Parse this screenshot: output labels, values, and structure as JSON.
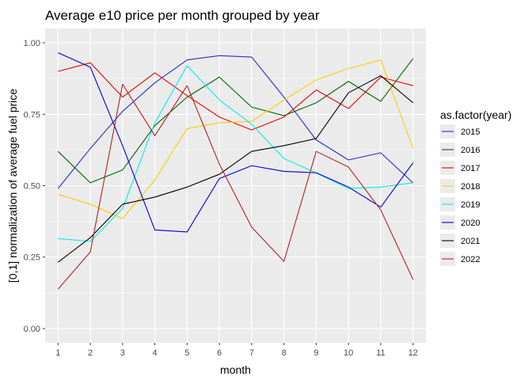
{
  "chart_data": {
    "type": "line",
    "title": "Average e10 price per month grouped by year",
    "xlabel": "month",
    "ylabel": "[0,1] normalization of average fuel price",
    "x": [
      1,
      2,
      3,
      4,
      5,
      6,
      7,
      8,
      9,
      10,
      11,
      12
    ],
    "x_ticks": [
      "1",
      "2",
      "3",
      "4",
      "5",
      "6",
      "7",
      "8",
      "9",
      "10",
      "11",
      "12"
    ],
    "y_ticks": [
      "0.00",
      "0.25",
      "0.50",
      "0.75",
      "1.00"
    ],
    "y_tick_values": [
      0,
      0.25,
      0.5,
      0.75,
      1.0
    ],
    "xlim": [
      0.6,
      12.4
    ],
    "ylim": [
      -0.05,
      1.05
    ],
    "grid": true,
    "panel_background": "#ebebeb",
    "legend": {
      "title": "as.factor(year)",
      "placement": "right"
    },
    "series": [
      {
        "name": "2015",
        "color": "#2a2acc",
        "values": [
          0.49,
          0.63,
          0.76,
          0.86,
          0.94,
          0.955,
          0.95,
          0.81,
          0.66,
          0.59,
          0.615,
          0.51
        ]
      },
      {
        "name": "2016",
        "color": "#006400",
        "values": [
          0.62,
          0.51,
          0.555,
          0.71,
          0.81,
          0.88,
          0.775,
          0.745,
          0.79,
          0.865,
          0.795,
          0.945
        ]
      },
      {
        "name": "2017",
        "color": "#ee0000",
        "values": [
          0.9,
          0.93,
          0.81,
          0.895,
          0.815,
          0.74,
          0.695,
          0.74,
          0.835,
          0.77,
          0.88,
          0.85
        ]
      },
      {
        "name": "2018",
        "color": "#ffcc00",
        "values": [
          0.47,
          0.435,
          0.385,
          0.52,
          0.7,
          0.72,
          0.725,
          0.8,
          0.87,
          0.91,
          0.94,
          0.63
        ]
      },
      {
        "name": "2019",
        "color": "#00eeee",
        "values": [
          0.315,
          0.305,
          0.42,
          0.72,
          0.92,
          0.8,
          0.715,
          0.595,
          0.545,
          0.49,
          0.495,
          0.51
        ]
      },
      {
        "name": "2020",
        "color": "#0000cc",
        "values": [
          0.965,
          0.915,
          0.64,
          0.345,
          0.338,
          0.525,
          0.57,
          0.55,
          0.545,
          0.495,
          0.425,
          0.58
        ]
      },
      {
        "name": "2021",
        "color": "#000000",
        "values": [
          0.232,
          0.318,
          0.435,
          0.46,
          0.495,
          0.54,
          0.62,
          0.64,
          0.665,
          0.825,
          0.885,
          0.79
        ]
      },
      {
        "name": "2022",
        "color": "#b22222",
        "values": [
          0.138,
          0.268,
          0.855,
          0.675,
          0.85,
          0.575,
          0.355,
          0.235,
          0.62,
          0.565,
          0.415,
          0.172
        ]
      }
    ]
  }
}
